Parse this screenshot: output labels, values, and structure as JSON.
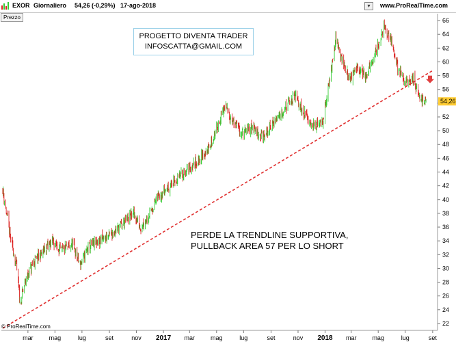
{
  "header": {
    "symbol": "EXOR",
    "timeframe": "Giornaliero",
    "quote": "54,26 (-0,29%)",
    "date": "17-ago-2018",
    "site": "www.ProRealTime.com"
  },
  "pane_label": "Prezzo",
  "annotation_box": {
    "line1": "PROGETTO DIVENTA TRADER",
    "line2": "INFOSCATTA@GMAIL.COM"
  },
  "note": {
    "line1": "PERDE LA TRENDLINE SUPPORTIVA,",
    "line2": "PULLBACK AREA 57 PER LO SHORT"
  },
  "credit": "© ProRealTime.com",
  "colors": {
    "up": "#33cc33",
    "down": "#dd2222",
    "trendline": "#e03030",
    "price_tag": "#ffcc33",
    "arrow": "#e04040"
  },
  "chart_data": {
    "type": "candlestick",
    "title": "",
    "xlabel": "",
    "ylabel": "",
    "ylim": [
      21,
      67
    ],
    "y_ticks": [
      22,
      24,
      26,
      28,
      30,
      32,
      34,
      36,
      38,
      40,
      42,
      44,
      46,
      48,
      50,
      52,
      54,
      56,
      58,
      60,
      62,
      64,
      66
    ],
    "x_ticks": [
      {
        "label": "mar",
        "date": "2016-03"
      },
      {
        "label": "mag",
        "date": "2016-05"
      },
      {
        "label": "lug",
        "date": "2016-07"
      },
      {
        "label": "set",
        "date": "2016-09"
      },
      {
        "label": "nov",
        "date": "2016-11"
      },
      {
        "label": "2017",
        "date": "2017-01",
        "bold": true
      },
      {
        "label": "mar",
        "date": "2017-03"
      },
      {
        "label": "mag",
        "date": "2017-05"
      },
      {
        "label": "lug",
        "date": "2017-07"
      },
      {
        "label": "set",
        "date": "2017-09"
      },
      {
        "label": "nov",
        "date": "2017-11"
      },
      {
        "label": "2018",
        "date": "2018-01",
        "bold": true
      },
      {
        "label": "mar",
        "date": "2018-03"
      },
      {
        "label": "mag",
        "date": "2018-05"
      },
      {
        "label": "lug",
        "date": "2018-07"
      },
      {
        "label": "set",
        "date": "2018-09"
      }
    ],
    "last_price": "54,26",
    "grid": false,
    "price_path": [
      {
        "date": "2016-01-04",
        "close": 41.5
      },
      {
        "date": "2016-01-20",
        "close": 35.0
      },
      {
        "date": "2016-02-05",
        "close": 30.0
      },
      {
        "date": "2016-02-12",
        "close": 25.0
      },
      {
        "date": "2016-02-26",
        "close": 28.5
      },
      {
        "date": "2016-03-15",
        "close": 31.0
      },
      {
        "date": "2016-04-05",
        "close": 32.5
      },
      {
        "date": "2016-04-25",
        "close": 34.0
      },
      {
        "date": "2016-05-15",
        "close": 32.5
      },
      {
        "date": "2016-06-10",
        "close": 33.5
      },
      {
        "date": "2016-06-27",
        "close": 30.5
      },
      {
        "date": "2016-07-15",
        "close": 33.0
      },
      {
        "date": "2016-08-10",
        "close": 34.0
      },
      {
        "date": "2016-09-05",
        "close": 35.0
      },
      {
        "date": "2016-10-01",
        "close": 36.5
      },
      {
        "date": "2016-10-25",
        "close": 38.0
      },
      {
        "date": "2016-11-10",
        "close": 36.0
      },
      {
        "date": "2016-12-01",
        "close": 38.0
      },
      {
        "date": "2016-12-20",
        "close": 40.5
      },
      {
        "date": "2017-01-15",
        "close": 42.0
      },
      {
        "date": "2017-02-10",
        "close": 43.5
      },
      {
        "date": "2017-02-28",
        "close": 44.5
      },
      {
        "date": "2017-03-25",
        "close": 46.0
      },
      {
        "date": "2017-04-15",
        "close": 47.5
      },
      {
        "date": "2017-05-05",
        "close": 51.0
      },
      {
        "date": "2017-05-20",
        "close": 53.5
      },
      {
        "date": "2017-06-10",
        "close": 51.0
      },
      {
        "date": "2017-06-30",
        "close": 49.5
      },
      {
        "date": "2017-07-20",
        "close": 50.5
      },
      {
        "date": "2017-08-15",
        "close": 49.0
      },
      {
        "date": "2017-09-10",
        "close": 51.5
      },
      {
        "date": "2017-10-05",
        "close": 53.5
      },
      {
        "date": "2017-10-25",
        "close": 55.0
      },
      {
        "date": "2017-11-15",
        "close": 52.5
      },
      {
        "date": "2017-12-10",
        "close": 50.5
      },
      {
        "date": "2017-12-28",
        "close": 51.5
      },
      {
        "date": "2018-01-10",
        "close": 57.0
      },
      {
        "date": "2018-01-25",
        "close": 63.5
      },
      {
        "date": "2018-02-10",
        "close": 60.0
      },
      {
        "date": "2018-02-25",
        "close": 57.5
      },
      {
        "date": "2018-03-15",
        "close": 59.0
      },
      {
        "date": "2018-04-05",
        "close": 58.0
      },
      {
        "date": "2018-04-25",
        "close": 61.5
      },
      {
        "date": "2018-05-15",
        "close": 65.0
      },
      {
        "date": "2018-05-30",
        "close": 63.0
      },
      {
        "date": "2018-06-15",
        "close": 59.0
      },
      {
        "date": "2018-07-01",
        "close": 57.0
      },
      {
        "date": "2018-07-20",
        "close": 57.5
      },
      {
        "date": "2018-08-01",
        "close": 55.0
      },
      {
        "date": "2018-08-17",
        "close": 54.26
      }
    ],
    "trendline": {
      "points": [
        {
          "date": "2016-01-04",
          "value": 21.3
        },
        {
          "date": "2018-08-31",
          "value": 58.7
        }
      ],
      "style": "dashed"
    }
  }
}
